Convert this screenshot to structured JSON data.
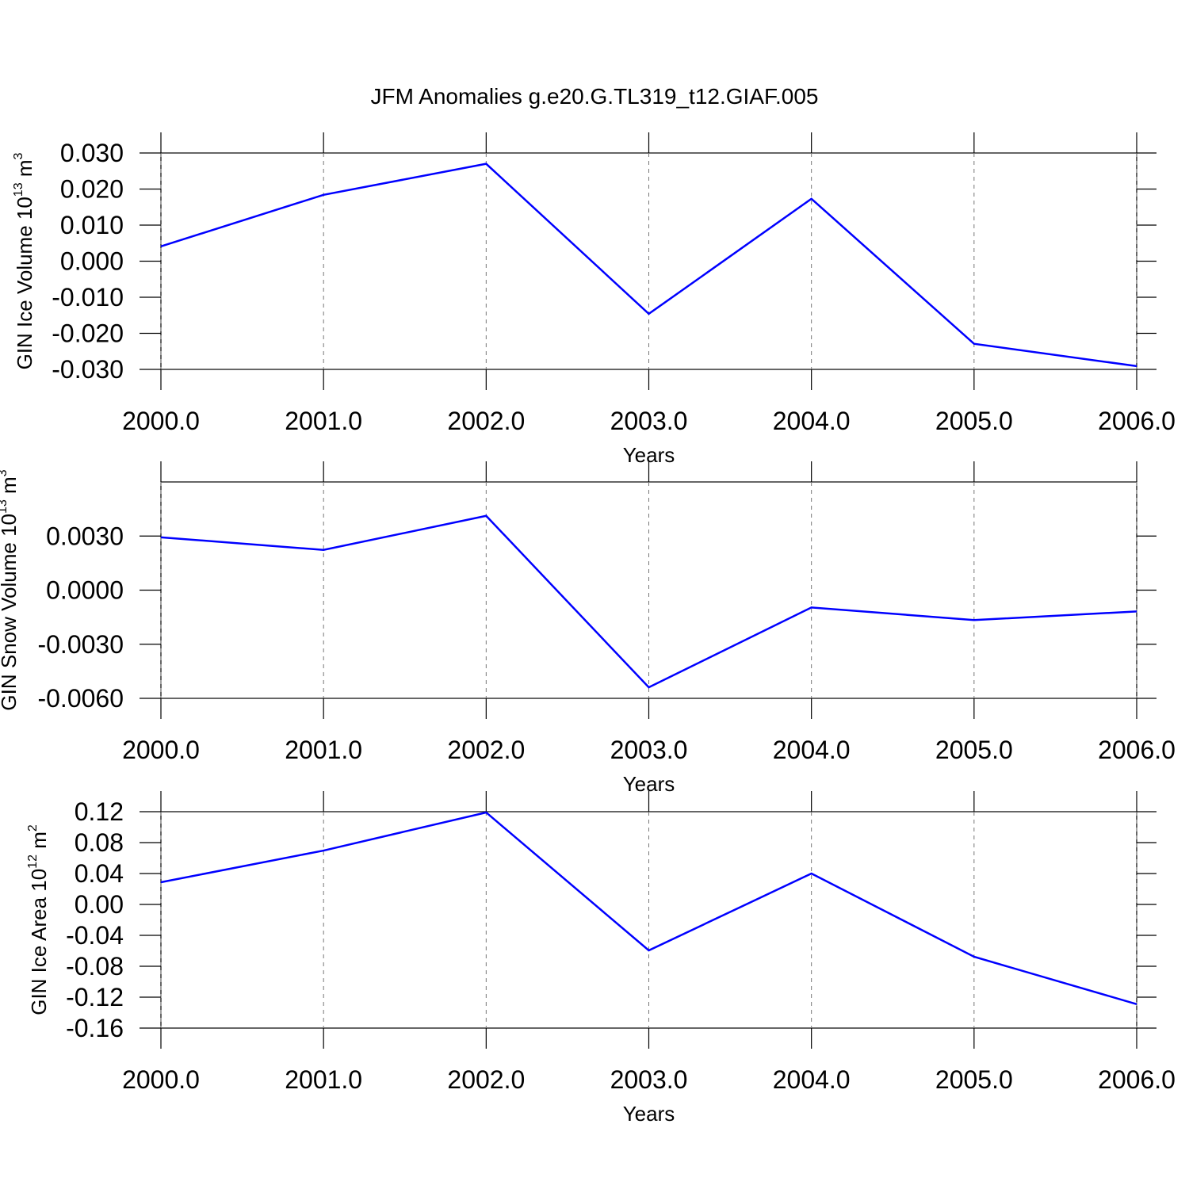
{
  "chart_data": [
    {
      "type": "line",
      "title": "JFM Anomalies g.e20.G.TL319_t12.GIAF.005",
      "ylabel": [
        "GIN Ice Volume 10",
        "13",
        " m",
        "3"
      ],
      "xlabel": "Years",
      "x": [
        2000,
        2001,
        2002,
        2003,
        2004,
        2005,
        2006
      ],
      "series": [
        {
          "color": "#0000ff",
          "values": [
            0.0041,
            0.0184,
            0.027,
            -0.0146,
            0.0173,
            -0.0229,
            -0.0291
          ]
        }
      ],
      "xlim": [
        2000,
        2006
      ],
      "xticks": [
        {
          "value": 2000,
          "label": "2000.0"
        },
        {
          "value": 2001,
          "label": "2001.0"
        },
        {
          "value": 2002,
          "label": "2002.0"
        },
        {
          "value": 2003,
          "label": "2003.0"
        },
        {
          "value": 2004,
          "label": "2004.0"
        },
        {
          "value": 2005,
          "label": "2005.0"
        },
        {
          "value": 2006,
          "label": "2006.0"
        }
      ],
      "ylim": [
        -0.03,
        0.03
      ],
      "yticks": [
        {
          "value": -0.03,
          "label": "-0.030"
        },
        {
          "value": -0.02,
          "label": "-0.020"
        },
        {
          "value": -0.01,
          "label": "-0.010"
        },
        {
          "value": 0,
          "label": "0.000"
        },
        {
          "value": 0.01,
          "label": "0.010"
        },
        {
          "value": 0.02,
          "label": "0.020"
        },
        {
          "value": 0.03,
          "label": "0.030"
        }
      ],
      "grid": "x"
    },
    {
      "type": "line",
      "ylabel": [
        "GIN Snow Volume 10",
        "13",
        " m",
        "3"
      ],
      "xlabel": "Years",
      "x": [
        2000,
        2001,
        2002,
        2003,
        2004,
        2005,
        2006
      ],
      "series": [
        {
          "color": "#0000ff",
          "values": [
            0.00293,
            0.00223,
            0.00412,
            -0.00539,
            -0.00096,
            -0.00166,
            -0.00118
          ]
        }
      ],
      "xlim": [
        2000,
        2006
      ],
      "xticks": [
        {
          "value": 2000,
          "label": "2000.0"
        },
        {
          "value": 2001,
          "label": "2001.0"
        },
        {
          "value": 2002,
          "label": "2002.0"
        },
        {
          "value": 2003,
          "label": "2003.0"
        },
        {
          "value": 2004,
          "label": "2004.0"
        },
        {
          "value": 2005,
          "label": "2005.0"
        },
        {
          "value": 2006,
          "label": "2006.0"
        }
      ],
      "ylim": [
        -0.006,
        0.006
      ],
      "yticks": [
        {
          "value": -0.006,
          "label": "-0.0060"
        },
        {
          "value": -0.003,
          "label": "-0.0030"
        },
        {
          "value": 0,
          "label": "0.0000"
        },
        {
          "value": 0.003,
          "label": "0.0030"
        }
      ],
      "grid": "x"
    },
    {
      "type": "line",
      "ylabel": [
        "GIN Ice Area 10",
        "12",
        " m",
        "2"
      ],
      "xlabel": "Years",
      "x": [
        2000,
        2001,
        2002,
        2003,
        2004,
        2005,
        2006
      ],
      "series": [
        {
          "color": "#0000ff",
          "values": [
            0.0287,
            0.0697,
            0.119,
            -0.0595,
            0.04,
            -0.0677,
            -0.129
          ]
        }
      ],
      "xlim": [
        2000,
        2006
      ],
      "xticks": [
        {
          "value": 2000,
          "label": "2000.0"
        },
        {
          "value": 2001,
          "label": "2001.0"
        },
        {
          "value": 2002,
          "label": "2002.0"
        },
        {
          "value": 2003,
          "label": "2003.0"
        },
        {
          "value": 2004,
          "label": "2004.0"
        },
        {
          "value": 2005,
          "label": "2005.0"
        },
        {
          "value": 2006,
          "label": "2006.0"
        }
      ],
      "ylim": [
        -0.16,
        0.12
      ],
      "yticks": [
        -0.16,
        -0.12,
        -0.08,
        -0.04,
        {
          "value": 0,
          "label": "0.00"
        },
        0.04,
        0.08,
        0.12
      ],
      "grid": "x"
    }
  ]
}
